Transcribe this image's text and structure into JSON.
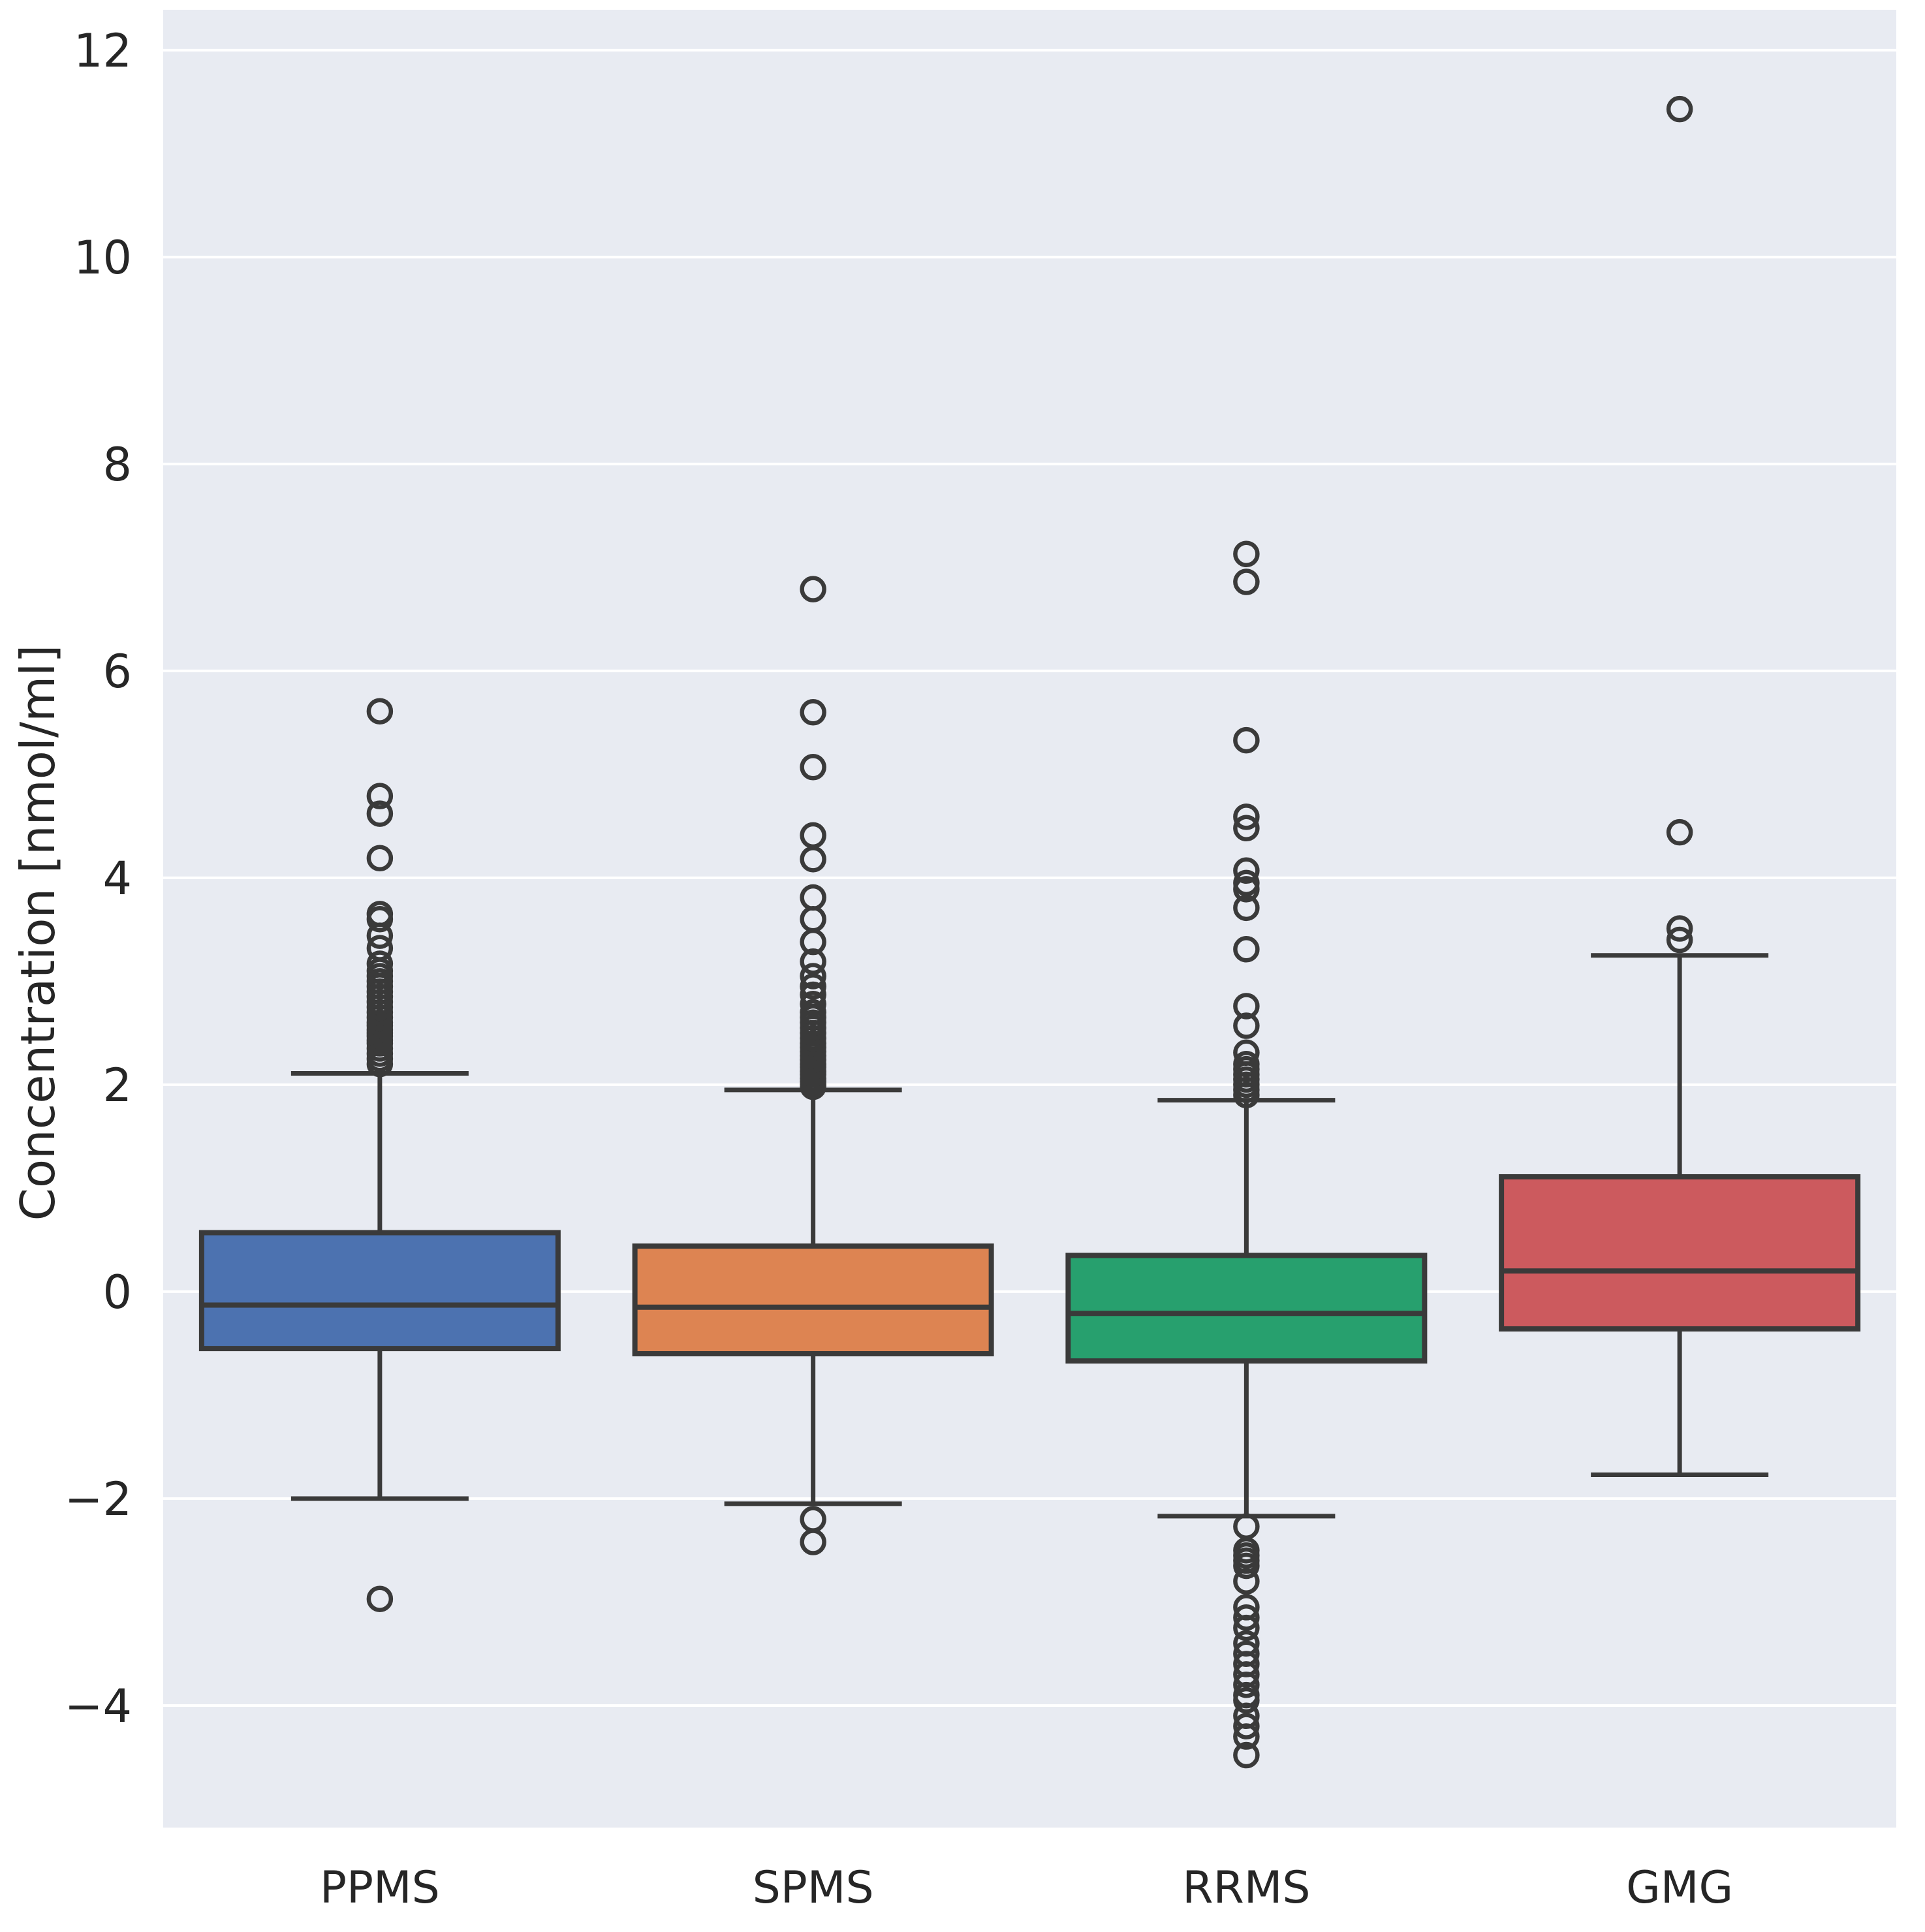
{
  "chart_data": {
    "type": "box",
    "title": "",
    "xlabel": "",
    "ylabel": "Concentration [nmol/ml]",
    "yticks": [
      12,
      10,
      8,
      6,
      4,
      2,
      0,
      -2,
      -4
    ],
    "ylim": [
      -5.18,
      12.39
    ],
    "grid": "horizontal-white-on-grey",
    "legend": "none",
    "plot_bg_color": "#e8ebf2",
    "grid_color": "#ffffff",
    "line_color": "#3a3a3a",
    "text_color": "#262626",
    "categories": [
      "PPMS",
      "SPMS",
      "RRMS",
      "GMG"
    ],
    "series": [
      {
        "name": "PPMS",
        "color": "#4c72b0",
        "q1": -0.55,
        "median": -0.13,
        "q3": 0.57,
        "whisker_low": -2.0,
        "whisker_high": 2.11,
        "outliers": [
          -2.97,
          2.2,
          2.25,
          2.3,
          2.35,
          2.4,
          2.43,
          2.47,
          2.5,
          2.53,
          2.57,
          2.6,
          2.65,
          2.7,
          2.75,
          2.8,
          2.85,
          2.9,
          2.95,
          3.0,
          3.05,
          3.1,
          3.17,
          3.32,
          3.44,
          3.6,
          3.65,
          4.19,
          4.62,
          4.79,
          5.61
        ]
      },
      {
        "name": "SPMS",
        "color": "#dd8452",
        "q1": -0.6,
        "median": -0.15,
        "q3": 0.44,
        "whisker_low": -2.05,
        "whisker_high": 1.95,
        "outliers": [
          -2.42,
          -2.2,
          1.98,
          2.0,
          2.03,
          2.06,
          2.1,
          2.13,
          2.17,
          2.2,
          2.24,
          2.28,
          2.32,
          2.36,
          2.4,
          2.45,
          2.5,
          2.55,
          2.6,
          2.65,
          2.7,
          2.78,
          2.87,
          2.95,
          3.05,
          3.19,
          3.38,
          3.6,
          3.81,
          4.18,
          4.41,
          5.07,
          5.6,
          6.79
        ]
      },
      {
        "name": "RRMS",
        "color": "#27a06e",
        "q1": -0.67,
        "median": -0.21,
        "q3": 0.35,
        "whisker_low": -2.17,
        "whisker_high": 1.85,
        "outliers": [
          -4.48,
          -4.3,
          -4.2,
          -4.1,
          -3.95,
          -3.9,
          -3.8,
          -3.7,
          -3.6,
          -3.5,
          -3.4,
          -3.25,
          -3.15,
          -3.05,
          -2.8,
          -2.65,
          -2.6,
          -2.55,
          -2.5,
          -2.27,
          1.9,
          1.95,
          2.0,
          2.05,
          2.1,
          2.15,
          2.2,
          2.31,
          2.57,
          2.76,
          3.31,
          3.71,
          3.89,
          3.95,
          4.07,
          4.48,
          4.59,
          5.33,
          6.86,
          7.13
        ]
      },
      {
        "name": "GMG",
        "color": "#cc5a5e",
        "q1": -0.36,
        "median": 0.2,
        "q3": 1.11,
        "whisker_low": -1.77,
        "whisker_high": 3.25,
        "outliers": [
          3.4,
          3.51,
          4.44,
          11.43
        ]
      }
    ]
  }
}
